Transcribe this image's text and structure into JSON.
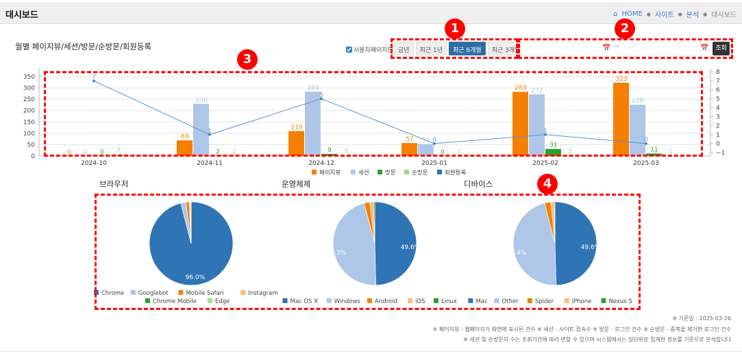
{
  "header": {
    "title": "대시보드",
    "breadcrumb": [
      "HOME",
      "사이트",
      "분석",
      "대시보드"
    ]
  },
  "section_title": "월별 페이지뷰/세션/방문/순방문/회원등록",
  "filter": {
    "checkbox_label": "사용자페이지만",
    "checkbox_checked": true,
    "periods": [
      "금년",
      "최근 1년",
      "최근 6개월",
      "최근 3개월"
    ],
    "active_period": "최근 6개월",
    "date_from": "",
    "date_to": "",
    "separator": "~",
    "search_label": "조회"
  },
  "annotations": [
    "1",
    "2",
    "3",
    "4"
  ],
  "chart_data": [
    {
      "type": "bar+line",
      "categories": [
        "2024-10",
        "2024-11",
        "2024-12",
        "2025-01",
        "2025-02",
        "2025-03"
      ],
      "series": [
        {
          "name": "페이지뷰",
          "type": "bar",
          "axis": "left",
          "color": "#f57f00",
          "values": [
            0,
            69,
            110,
            57,
            283,
            323
          ]
        },
        {
          "name": "세션",
          "type": "bar",
          "axis": "left",
          "color": "#aec7e8",
          "values": [
            0,
            230,
            284,
            53,
            272,
            226
          ]
        },
        {
          "name": "방문",
          "type": "bar",
          "axis": "left",
          "color": "#2ca02c",
          "values": [
            0,
            2,
            9,
            0,
            31,
            11
          ]
        },
        {
          "name": "순방문",
          "type": "bar",
          "axis": "left",
          "color": "#98df8a",
          "values": [
            7,
            2,
            3,
            1,
            2,
            1
          ]
        },
        {
          "name": "회원등록",
          "type": "line",
          "axis": "right",
          "color": "#2f74b5",
          "values": [
            7,
            1,
            5,
            0,
            1,
            0
          ]
        }
      ],
      "y_left": {
        "range": [
          0,
          350
        ],
        "ticks": [
          0,
          50,
          100,
          150,
          200,
          250,
          300,
          350
        ]
      },
      "y_right": {
        "range": [
          -1,
          8
        ],
        "ticks": [
          -1,
          0,
          1,
          2,
          3,
          4,
          5,
          6,
          7,
          8
        ]
      },
      "grid": true,
      "legend": "bottom-center"
    },
    {
      "type": "pie",
      "title": "브라우저",
      "labels": [
        "Chrome",
        "Googlebot",
        "Mobile Safari",
        "Instagram",
        "Chrome Mobile",
        "Edge"
      ],
      "values": [
        96.0,
        2.0,
        1.2,
        0.5,
        0.2,
        0.1
      ],
      "colors": [
        "#2f74b5",
        "#aec7e8",
        "#f57f00",
        "#ffbb78",
        "#2ca02c",
        "#98df8a"
      ],
      "shown_label": "96.0%"
    },
    {
      "type": "pie",
      "title": "운영체제",
      "labels": [
        "Mac OS X",
        "Windows",
        "Android",
        "iOS",
        "Linux"
      ],
      "values": [
        49.6,
        46.3,
        2.2,
        1.4,
        0.5
      ],
      "colors": [
        "#2f74b5",
        "#aec7e8",
        "#f57f00",
        "#ffbb78",
        "#2ca02c"
      ],
      "shown_labels": [
        "49.6%",
        "46.3%"
      ]
    },
    {
      "type": "pie",
      "title": "디바이스",
      "labels": [
        "Mac",
        "Other",
        "Spider",
        "iPhone",
        "Nexus 5"
      ],
      "values": [
        49.6,
        46.4,
        2.4,
        1.3,
        0.3
      ],
      "colors": [
        "#2f74b5",
        "#aec7e8",
        "#f57f00",
        "#ffbb78",
        "#2ca02c"
      ],
      "shown_labels": [
        "49.6%",
        "46.4%"
      ]
    }
  ],
  "footer": {
    "base_date": "※ 기준일 : 2025-03-26",
    "note1": "※ 페이지뷰 - 웹페이지가 화면에 표시된 건수   ※ 세션 - 사이트 접속수   ※ 방문 - 로그인 건수   ※ 순방문 - 중복을 제거한 로그인 건수",
    "note2": "※ 세션 및 순방문자 수는 조회기간에 따라 변할 수 있으며 시스템에서는 일단위로 집계한 정보를 기준으로 분석합니다"
  }
}
